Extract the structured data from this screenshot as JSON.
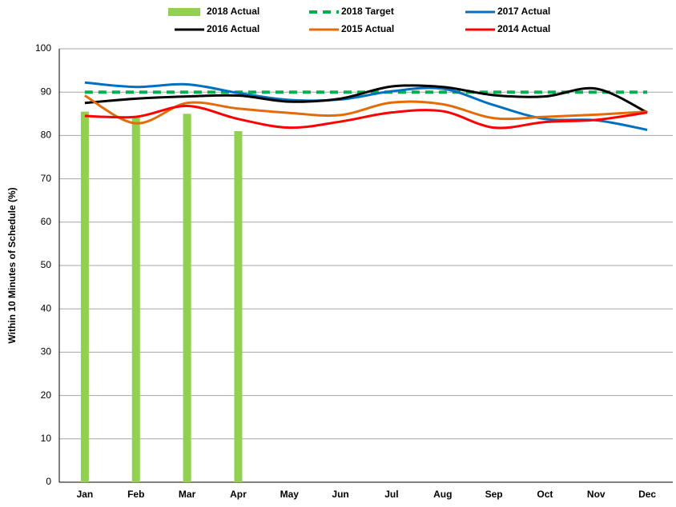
{
  "chart_data": {
    "type": "combo",
    "y_label": "Within 10 Minutes of Schedule (%)",
    "categories": [
      "Jan",
      "Feb",
      "Mar",
      "Apr",
      "May",
      "Jun",
      "Jul",
      "Aug",
      "Sep",
      "Oct",
      "Nov",
      "Dec"
    ],
    "ylim": [
      0,
      100
    ],
    "yticks": [
      0,
      10,
      20,
      30,
      40,
      50,
      60,
      70,
      80,
      90,
      100
    ],
    "grid": true,
    "series": [
      {
        "name": "2018 Actual",
        "type": "bar",
        "color": "#92d050",
        "values": [
          85.5,
          84.1,
          85.0,
          81.0,
          null,
          null,
          null,
          null,
          null,
          null,
          null,
          null
        ]
      },
      {
        "name": "2018 Target",
        "type": "line",
        "dashed": true,
        "color": "#00b050",
        "values": [
          90,
          90,
          90,
          90,
          90,
          90,
          90,
          90,
          90,
          90,
          90,
          90
        ]
      },
      {
        "name": "2017 Actual",
        "type": "line",
        "color": "#0070c0",
        "values": [
          92.2,
          91.2,
          91.8,
          89.8,
          88.2,
          88.3,
          90.2,
          90.8,
          87.0,
          83.8,
          83.5,
          81.3
        ]
      },
      {
        "name": "2016 Actual",
        "type": "line",
        "color": "#000000",
        "values": [
          87.5,
          88.5,
          89.0,
          89.2,
          87.8,
          88.5,
          91.3,
          91.2,
          89.3,
          89.0,
          90.8,
          85.3
        ]
      },
      {
        "name": "2015 Actual",
        "type": "line",
        "color": "#e36c09",
        "values": [
          89.2,
          82.8,
          87.5,
          86.2,
          85.2,
          84.7,
          87.6,
          87.2,
          84.0,
          84.3,
          84.8,
          85.5
        ]
      },
      {
        "name": "2014 Actual",
        "type": "line",
        "color": "#ff0000",
        "values": [
          84.5,
          84.3,
          86.8,
          83.8,
          81.8,
          83.2,
          85.3,
          85.6,
          81.8,
          83.1,
          83.6,
          85.3
        ]
      }
    ]
  }
}
